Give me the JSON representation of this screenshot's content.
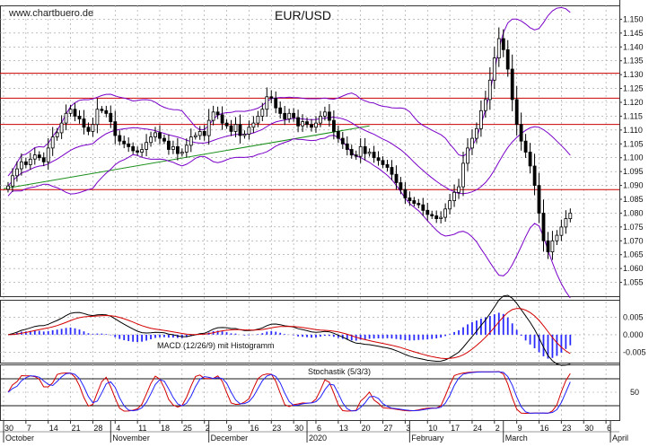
{
  "watermark": "www.chartbuero.de",
  "title": "EUR/USD",
  "chart_data": {
    "type": "candlestick",
    "title": "EUR/USD",
    "price_axis": {
      "min": 1.05,
      "max": 1.155,
      "step": 0.005,
      "ticks": [
        "1.150",
        "1.145",
        "1.140",
        "1.135",
        "1.130",
        "1.125",
        "1.120",
        "1.115",
        "1.110",
        "1.105",
        "1.100",
        "1.095",
        "1.090",
        "1.085",
        "1.080",
        "1.075",
        "1.070",
        "1.065",
        "1.060",
        "1.055"
      ]
    },
    "x_axis": {
      "day_ticks": [
        {
          "label": "30",
          "index": 0
        },
        {
          "label": "7",
          "index": 5
        },
        {
          "label": "14",
          "index": 10
        },
        {
          "label": "21",
          "index": 15
        },
        {
          "label": "28",
          "index": 20
        },
        {
          "label": "4",
          "index": 25
        },
        {
          "label": "11",
          "index": 30
        },
        {
          "label": "18",
          "index": 35
        },
        {
          "label": "25",
          "index": 40
        },
        {
          "label": "2",
          "index": 45
        },
        {
          "label": "9",
          "index": 50
        },
        {
          "label": "16",
          "index": 55
        },
        {
          "label": "23",
          "index": 60
        },
        {
          "label": "30",
          "index": 65
        },
        {
          "label": "6",
          "index": 70
        },
        {
          "label": "13",
          "index": 75
        },
        {
          "label": "20",
          "index": 80
        },
        {
          "label": "27",
          "index": 85
        },
        {
          "label": "3",
          "index": 90
        },
        {
          "label": "10",
          "index": 95
        },
        {
          "label": "17",
          "index": 100
        },
        {
          "label": "24",
          "index": 105
        },
        {
          "label": "2",
          "index": 110
        },
        {
          "label": "9",
          "index": 115
        },
        {
          "label": "16",
          "index": 120
        },
        {
          "label": "23",
          "index": 125
        },
        {
          "label": "30",
          "index": 130
        },
        {
          "label": "6",
          "index": 135
        }
      ],
      "month_labels": [
        {
          "label": "October",
          "index": 0
        },
        {
          "label": "November",
          "index": 24
        },
        {
          "label": "December",
          "index": 46
        },
        {
          "label": "2020",
          "index": 68
        },
        {
          "label": "February",
          "index": 91
        },
        {
          "label": "March",
          "index": 112
        },
        {
          "label": "April",
          "index": 136
        }
      ],
      "total_slots": 138,
      "candle_count": 127
    },
    "closes": [
      1.0898,
      1.0935,
      1.096,
      1.0985,
      1.0975,
      1.0995,
      1.101,
      1.1,
      1.0985,
      1.1035,
      1.1075,
      1.109,
      1.1125,
      1.116,
      1.1175,
      1.115,
      1.114,
      1.111,
      1.1095,
      1.112,
      1.1175,
      1.117,
      1.116,
      1.113,
      1.108,
      1.106,
      1.105,
      1.104,
      1.1025,
      1.102,
      1.103,
      1.1055,
      1.1075,
      1.109,
      1.107,
      1.106,
      1.103,
      1.104,
      1.1015,
      1.102,
      1.1045,
      1.1075,
      1.108,
      1.1095,
      1.108,
      1.1135,
      1.1165,
      1.1155,
      1.1125,
      1.1115,
      1.1095,
      1.112,
      1.108,
      1.1085,
      1.111,
      1.1125,
      1.115,
      1.1175,
      1.122,
      1.1215,
      1.118,
      1.116,
      1.114,
      1.116,
      1.1145,
      1.1115,
      1.113,
      1.112,
      1.111,
      1.1125,
      1.115,
      1.1165,
      1.1135,
      1.1095,
      1.107,
      1.105,
      1.103,
      1.101,
      1.1005,
      1.104,
      1.1015,
      1.102,
      1.1,
      1.099,
      1.0975,
      1.0965,
      1.094,
      1.091,
      1.0885,
      1.0855,
      1.0845,
      1.0835,
      1.083,
      1.081,
      1.0795,
      1.079,
      1.078,
      1.0785,
      1.0815,
      1.0845,
      1.0875,
      1.0895,
      1.098,
      1.1035,
      1.107,
      1.1105,
      1.117,
      1.121,
      1.128,
      1.136,
      1.143,
      1.139,
      1.132,
      1.121,
      1.112,
      1.106,
      1.102,
      1.097,
      1.09,
      1.08,
      1.07,
      1.066,
      1.07,
      1.072,
      1.075,
      1.078,
      1.08
    ],
    "indicators": [
      "Bollinger Bands",
      "SMA"
    ],
    "horizontal_lines": [
      1.1305,
      1.1215,
      1.112,
      1.0885
    ],
    "trendline": {
      "from": {
        "index": 0,
        "value": 1.0888
      },
      "to": {
        "index": 82,
        "value": 1.1115
      }
    },
    "macd": {
      "label": "MACD (12/26/9) mit Histogramm",
      "axis": {
        "min": -0.008,
        "max": 0.01,
        "ticks": [
          "0.005",
          "0.000",
          "-0.005"
        ]
      }
    },
    "stochastic": {
      "label": "Stochastik (5/3/3)",
      "axis": {
        "min": 0,
        "max": 100,
        "ticks": [
          "50"
        ]
      },
      "levels": [
        80,
        20
      ]
    },
    "grid": true,
    "colors": {
      "background": "#ffffff",
      "grid": "#9a9a9a",
      "bollinger": "#7a00c8",
      "sma": "#7a00c8",
      "trendline": "#1a8f1a",
      "resistance": "#cc0000",
      "macd_line": "#000000",
      "signal_line": "#d40000",
      "histogram": "#2a2aff",
      "stoch_k": "#d40000",
      "stoch_d": "#2020ff",
      "stoch_level": "#1a1a1a"
    }
  }
}
